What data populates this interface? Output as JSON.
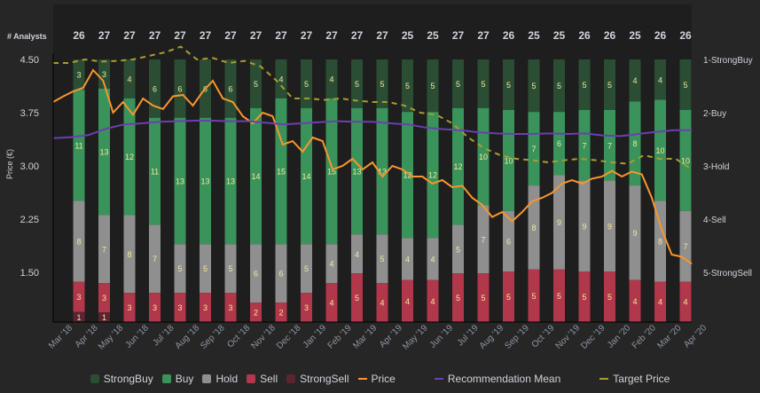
{
  "chart_data": {
    "type": "bar",
    "stacked": true,
    "normalized": true,
    "analysts_label": "# Analysts",
    "ylabel": "Price (€)",
    "y_ticks": [
      "4.50",
      "3.75",
      "3.00",
      "2.25",
      "1.50"
    ],
    "ylim": [
      1.5,
      4.5
    ],
    "y2_ticks": [
      "1-StrongBuy",
      "2-Buy",
      "3-Hold",
      "4-Sell",
      "5-StrongSell"
    ],
    "y2lim": [
      1,
      5
    ],
    "x_ticks": [
      "Mar '18",
      "Apr '18",
      "May '18",
      "Jun '18",
      "Jul '18",
      "Aug '18",
      "Sep '18",
      "Oct '18",
      "Nov '18",
      "Dec '18",
      "Jan '19",
      "Feb '19",
      "Mar '19",
      "Apr '19",
      "May '19",
      "Jun '19",
      "Jul '19",
      "Aug '19",
      "Sep '19",
      "Oct '19",
      "Nov '19",
      "Dec '19",
      "Jan '20",
      "Feb '20",
      "Mar '20",
      "Apr '20"
    ],
    "analyst_counts": [
      26,
      27,
      27,
      27,
      27,
      27,
      27,
      27,
      27,
      27,
      27,
      27,
      27,
      25,
      25,
      27,
      27,
      26,
      25,
      25,
      26,
      26,
      25,
      26,
      26
    ],
    "series": [
      {
        "name": "StrongBuy",
        "color": "#2a4d34",
        "values": [
          3,
          3,
          4,
          6,
          6,
          6,
          6,
          5,
          4,
          5,
          4,
          5,
          5,
          5,
          5,
          5,
          5,
          5,
          5,
          5,
          5,
          5,
          4,
          4,
          5
        ]
      },
      {
        "name": "Buy",
        "color": "#3a935a",
        "values": [
          11,
          13,
          12,
          11,
          13,
          13,
          13,
          14,
          15,
          14,
          15,
          13,
          13,
          12,
          12,
          12,
          10,
          10,
          7,
          6,
          7,
          7,
          8,
          10,
          10
        ]
      },
      {
        "name": "Hold",
        "color": "#8f8f8f",
        "values": [
          8,
          7,
          8,
          7,
          5,
          5,
          5,
          6,
          6,
          5,
          4,
          4,
          5,
          4,
          4,
          5,
          7,
          6,
          8,
          9,
          9,
          9,
          9,
          8,
          7
        ]
      },
      {
        "name": "Sell",
        "color": "#b1374b",
        "values": [
          3,
          3,
          3,
          3,
          3,
          3,
          3,
          2,
          2,
          3,
          4,
          5,
          4,
          4,
          4,
          5,
          5,
          5,
          5,
          5,
          5,
          5,
          4,
          4,
          4
        ]
      },
      {
        "name": "StrongSell",
        "color": "#5a2530",
        "values": [
          1,
          1,
          0,
          0,
          0,
          0,
          0,
          0,
          0,
          0,
          0,
          0,
          0,
          0,
          0,
          0,
          0,
          0,
          0,
          0,
          0,
          0,
          0,
          0,
          0
        ]
      }
    ],
    "lines": [
      {
        "name": "Price",
        "color": "#f7962e",
        "axis": "left",
        "values": [
          3.9,
          3.98,
          4.05,
          4.1,
          4.35,
          4.2,
          3.75,
          3.9,
          3.72,
          3.95,
          3.85,
          3.8,
          3.98,
          4.0,
          3.85,
          4.05,
          4.2,
          3.95,
          3.9,
          3.7,
          3.6,
          3.75,
          3.7,
          3.3,
          3.35,
          3.2,
          3.4,
          3.35,
          2.95,
          3.0,
          3.1,
          2.95,
          3.05,
          2.85,
          3.0,
          2.95,
          2.85,
          2.85,
          2.75,
          2.8,
          2.7,
          2.72,
          2.55,
          2.45,
          2.28,
          2.35,
          2.22,
          2.35,
          2.5,
          2.55,
          2.62,
          2.75,
          2.8,
          2.75,
          2.82,
          2.85,
          2.93,
          2.85,
          2.92,
          2.88,
          2.55,
          2.1,
          1.75,
          1.72,
          1.62
        ]
      },
      {
        "name": "Recommendation Mean",
        "color": "#6b3fb0",
        "axis": "right",
        "values": [
          2.48,
          2.46,
          2.42,
          2.3,
          2.22,
          2.2,
          2.17,
          2.16,
          2.15,
          2.15,
          2.16,
          2.16,
          2.19,
          2.22,
          2.2,
          2.18,
          2.16,
          2.17,
          2.17,
          2.2,
          2.22,
          2.28,
          2.31,
          2.33,
          2.37,
          2.39,
          2.4,
          2.4,
          2.39,
          2.4,
          2.39,
          2.43,
          2.44,
          2.4,
          2.36,
          2.33,
          2.33
        ]
      },
      {
        "name": "Target Price",
        "color": "#a89d32",
        "axis": "left",
        "values": [
          4.45,
          4.45,
          4.5,
          4.47,
          4.48,
          4.5,
          4.55,
          4.6,
          4.68,
          4.5,
          4.52,
          4.45,
          4.48,
          4.4,
          4.2,
          3.95,
          3.95,
          3.93,
          3.95,
          3.92,
          3.9,
          3.9,
          3.85,
          3.75,
          3.72,
          3.6,
          3.4,
          3.25,
          3.15,
          3.1,
          3.08,
          3.05,
          3.08,
          3.1,
          3.08,
          3.05,
          3.03,
          3.15,
          3.1,
          3.1,
          2.95
        ]
      }
    ],
    "legend_position": "bottom",
    "grid": false
  },
  "legend": [
    "StrongBuy",
    "Buy",
    "Hold",
    "Sell",
    "StrongSell",
    "Price",
    "Recommendation Mean",
    "Target Price"
  ]
}
